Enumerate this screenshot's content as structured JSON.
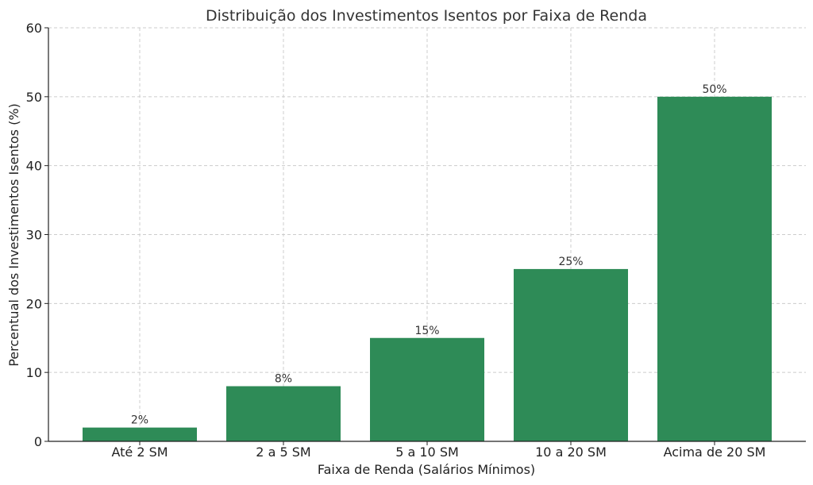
{
  "chart_data": {
    "type": "bar",
    "title": "Distribuição dos Investimentos Isentos por Faixa de Renda",
    "xlabel": "Faixa de Renda (Salários Mínimos)",
    "ylabel": "Percentual dos Investimentos Isentos (%)",
    "categories": [
      "Até 2 SM",
      "2 a 5 SM",
      "5 a 10 SM",
      "10 a 20 SM",
      "Acima de 20 SM"
    ],
    "values": [
      2,
      8,
      15,
      25,
      50
    ],
    "data_labels": [
      "2%",
      "8%",
      "15%",
      "25%",
      "50%"
    ],
    "ylim": [
      0,
      60
    ],
    "yticks": [
      0,
      10,
      20,
      30,
      40,
      50,
      60
    ],
    "bar_color": "#2e8b57",
    "grid": true
  }
}
